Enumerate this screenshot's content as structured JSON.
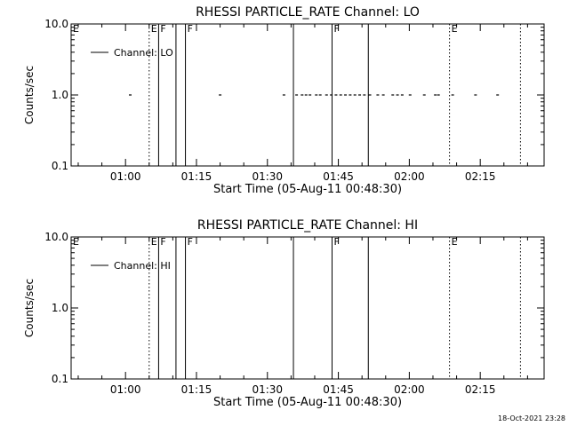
{
  "footer": "18-Oct-2021 23:28",
  "chart_data": [
    {
      "type": "scatter",
      "title": "RHESSI PARTICLE_RATE Channel: LO",
      "xlabel": "Start Time (05-Aug-11 00:48:30)",
      "ylabel": "Counts/sec",
      "y_scale": "log",
      "ylim": [
        0.1,
        10.0
      ],
      "xlim": [
        "00:48:30",
        "02:28:30"
      ],
      "y_ticks": [
        "0.1",
        "1.0",
        "10.0"
      ],
      "x_ticks": [
        "01:00",
        "01:15",
        "01:30",
        "01:45",
        "02:00",
        "02:15"
      ],
      "legend": "Channel: LO",
      "legend_position": "top-left",
      "series": [
        {
          "name": "Channel: LO",
          "x": [
            "01:01:00",
            "01:20:00",
            "01:33:30",
            "01:36:10",
            "01:37:20",
            "01:38:10",
            "01:39:00",
            "01:40:20",
            "01:41:10",
            "01:42:30",
            "01:43:30",
            "01:44:30",
            "01:45:30",
            "01:46:30",
            "01:47:30",
            "01:48:30",
            "01:49:30",
            "01:50:30",
            "01:51:40",
            "01:53:20",
            "01:54:30",
            "01:56:30",
            "01:57:30",
            "01:58:30",
            "02:00:10",
            "02:03:10",
            "02:05:30",
            "02:06:10",
            "02:09:10",
            "02:14:00",
            "02:18:40"
          ],
          "y": [
            1.0,
            1.0,
            1.0,
            1.0,
            1.0,
            1.0,
            1.0,
            1.0,
            1.0,
            1.0,
            1.0,
            1.0,
            1.0,
            1.0,
            1.0,
            1.0,
            1.0,
            1.0,
            1.0,
            1.0,
            1.0,
            1.0,
            1.0,
            1.0,
            1.0,
            1.0,
            1.0,
            1.0,
            1.0,
            1.0,
            1.0
          ]
        }
      ],
      "flag_lines": [
        {
          "time": "01:05:00",
          "style": "dotted",
          "label": "E"
        },
        {
          "time": "01:07:00",
          "style": "solid",
          "label": "F"
        },
        {
          "time": "01:10:40",
          "style": "solid",
          "label": ""
        },
        {
          "time": "01:12:40",
          "style": "solid",
          "label": "F"
        },
        {
          "time": "01:35:30",
          "style": "solid",
          "label": ""
        },
        {
          "time": "01:43:40",
          "style": "solid",
          "label": "F"
        },
        {
          "time": "01:51:20",
          "style": "solid",
          "label": ""
        },
        {
          "time": "02:08:30",
          "style": "dotted",
          "label": "E"
        },
        {
          "time": "02:23:30",
          "style": "dotted",
          "label": ""
        }
      ],
      "edge_label": "E"
    },
    {
      "type": "scatter",
      "title": "RHESSI PARTICLE_RATE Channel: HI",
      "xlabel": "Start Time (05-Aug-11 00:48:30)",
      "ylabel": "Counts/sec",
      "y_scale": "log",
      "ylim": [
        0.1,
        10.0
      ],
      "xlim": [
        "00:48:30",
        "02:28:30"
      ],
      "y_ticks": [
        "0.1",
        "1.0",
        "10.0"
      ],
      "x_ticks": [
        "01:00",
        "01:15",
        "01:30",
        "01:45",
        "02:00",
        "02:15"
      ],
      "legend": "Channel: HI",
      "legend_position": "top-left",
      "series": [
        {
          "name": "Channel: HI",
          "x": [],
          "y": []
        }
      ],
      "flag_lines": [
        {
          "time": "01:05:00",
          "style": "dotted",
          "label": "E"
        },
        {
          "time": "01:07:00",
          "style": "solid",
          "label": "F"
        },
        {
          "time": "01:10:40",
          "style": "solid",
          "label": ""
        },
        {
          "time": "01:12:40",
          "style": "solid",
          "label": "F"
        },
        {
          "time": "01:35:30",
          "style": "solid",
          "label": ""
        },
        {
          "time": "01:43:40",
          "style": "solid",
          "label": "F"
        },
        {
          "time": "01:51:20",
          "style": "solid",
          "label": ""
        },
        {
          "time": "02:08:30",
          "style": "dotted",
          "label": "E"
        },
        {
          "time": "02:23:30",
          "style": "dotted",
          "label": ""
        }
      ],
      "edge_label": "E"
    }
  ]
}
